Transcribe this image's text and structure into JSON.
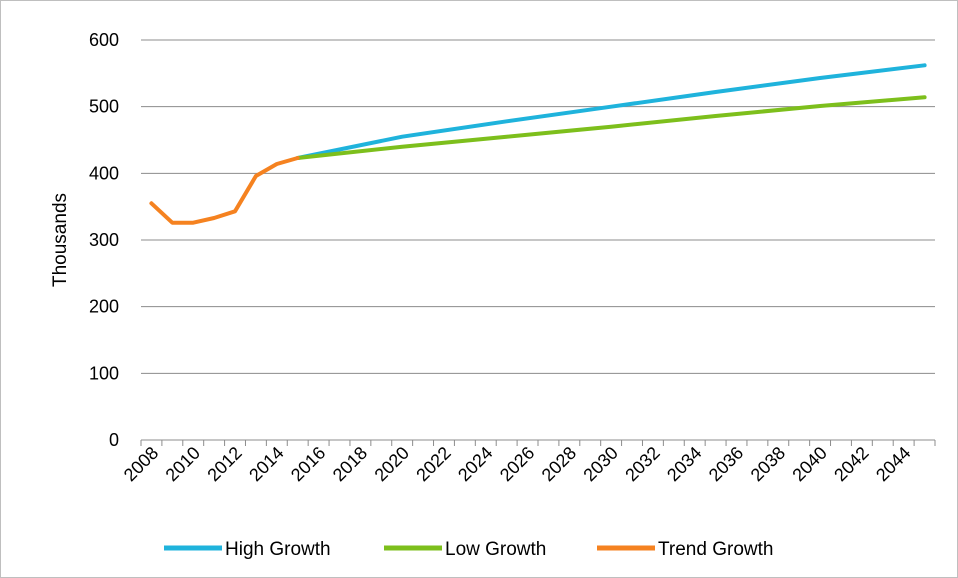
{
  "chart_data": {
    "type": "line",
    "title": "",
    "xlabel": "",
    "ylabel": "Thousands",
    "ylim": [
      0,
      600
    ],
    "yticks": [
      0,
      100,
      200,
      300,
      400,
      500,
      600
    ],
    "xlim": [
      2008,
      2045
    ],
    "xticks": [
      "2008",
      "2010",
      "2012",
      "2014",
      "2016",
      "2018",
      "2020",
      "2022",
      "2024",
      "2026",
      "2028",
      "2030",
      "2032",
      "2034",
      "2036",
      "2038",
      "2040",
      "2042",
      "2044"
    ],
    "grid": "horizontal",
    "legend_position": "bottom",
    "series": [
      {
        "name": "High Growth",
        "color": "#1fb3dc",
        "x": [
          2015,
          2020,
          2025,
          2030,
          2035,
          2040,
          2045
        ],
        "y": [
          423,
          455,
          478,
          500,
          522,
          543,
          562
        ]
      },
      {
        "name": "Low Growth",
        "color": "#7dbf1c",
        "x": [
          2015,
          2020,
          2025,
          2030,
          2035,
          2040,
          2045
        ],
        "y": [
          423,
          440,
          455,
          470,
          486,
          501,
          514
        ]
      },
      {
        "name": "Trend Growth",
        "color": "#f58220",
        "x": [
          2008,
          2009,
          2010,
          2011,
          2012,
          2013,
          2014,
          2015
        ],
        "y": [
          355,
          326,
          326,
          333,
          343,
          396,
          414,
          423
        ]
      }
    ]
  }
}
